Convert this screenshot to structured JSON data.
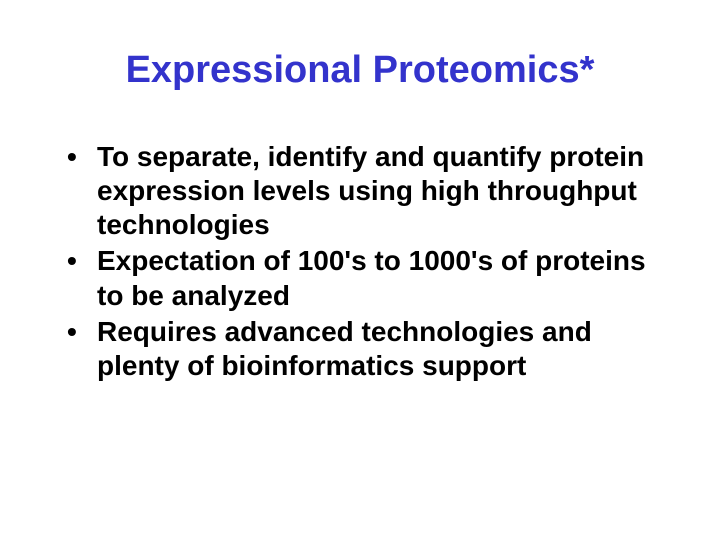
{
  "slide": {
    "title": "Expressional Proteomics*",
    "title_color": "#3333cc",
    "title_fontsize": 38,
    "background_color": "#ffffff",
    "bullets": [
      "To separate, identify and quantify protein expression levels using high throughput technologies",
      "Expectation of 100's to 1000's of proteins to be analyzed",
      "Requires advanced technologies and plenty of bioinformatics support"
    ],
    "bullet_color": "#000000",
    "bullet_fontsize": 28,
    "bullet_weight": "bold"
  }
}
